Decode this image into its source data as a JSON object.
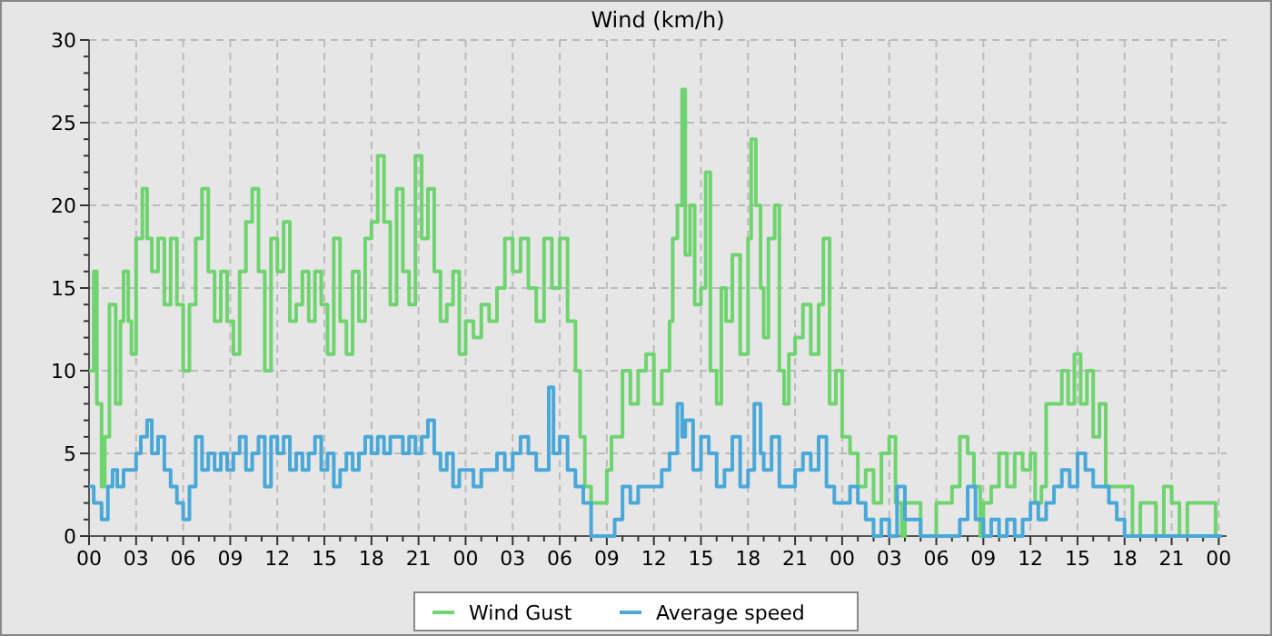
{
  "chart_data": {
    "type": "step",
    "title": "Wind (km/h)",
    "legend": "bottom",
    "grid": true,
    "line_style": "solid",
    "marker": "none",
    "xlim": [
      0,
      72.5
    ],
    "ylim": [
      0,
      30
    ],
    "xticks": [
      {
        "value": 0,
        "label": "00"
      },
      {
        "value": 1,
        "label": null
      },
      {
        "value": 2,
        "label": null
      },
      {
        "value": 3,
        "label": "03"
      },
      {
        "value": 4,
        "label": null
      },
      {
        "value": 5,
        "label": null
      },
      {
        "value": 6,
        "label": "06"
      },
      {
        "value": 7,
        "label": null
      },
      {
        "value": 8,
        "label": null
      },
      {
        "value": 9,
        "label": "09"
      },
      {
        "value": 10,
        "label": null
      },
      {
        "value": 11,
        "label": null
      },
      {
        "value": 12,
        "label": "12"
      },
      {
        "value": 13,
        "label": null
      },
      {
        "value": 14,
        "label": null
      },
      {
        "value": 15,
        "label": "15"
      },
      {
        "value": 16,
        "label": null
      },
      {
        "value": 17,
        "label": null
      },
      {
        "value": 18,
        "label": "18"
      },
      {
        "value": 19,
        "label": null
      },
      {
        "value": 20,
        "label": null
      },
      {
        "value": 21,
        "label": "21"
      },
      {
        "value": 22,
        "label": null
      },
      {
        "value": 23,
        "label": null
      },
      {
        "value": 24,
        "label": "00"
      },
      {
        "value": 25,
        "label": null
      },
      {
        "value": 26,
        "label": null
      },
      {
        "value": 27,
        "label": "03"
      },
      {
        "value": 28,
        "label": null
      },
      {
        "value": 29,
        "label": null
      },
      {
        "value": 30,
        "label": "06"
      },
      {
        "value": 31,
        "label": null
      },
      {
        "value": 32,
        "label": null
      },
      {
        "value": 33,
        "label": "09"
      },
      {
        "value": 34,
        "label": null
      },
      {
        "value": 35,
        "label": null
      },
      {
        "value": 36,
        "label": "12"
      },
      {
        "value": 37,
        "label": null
      },
      {
        "value": 38,
        "label": null
      },
      {
        "value": 39,
        "label": "15"
      },
      {
        "value": 40,
        "label": null
      },
      {
        "value": 41,
        "label": null
      },
      {
        "value": 42,
        "label": "18"
      },
      {
        "value": 43,
        "label": null
      },
      {
        "value": 44,
        "label": null
      },
      {
        "value": 45,
        "label": "21"
      },
      {
        "value": 46,
        "label": null
      },
      {
        "value": 47,
        "label": null
      },
      {
        "value": 48,
        "label": "00"
      },
      {
        "value": 49,
        "label": null
      },
      {
        "value": 50,
        "label": null
      },
      {
        "value": 51,
        "label": "03"
      },
      {
        "value": 52,
        "label": null
      },
      {
        "value": 53,
        "label": null
      },
      {
        "value": 54,
        "label": "06"
      },
      {
        "value": 55,
        "label": null
      },
      {
        "value": 56,
        "label": null
      },
      {
        "value": 57,
        "label": "09"
      },
      {
        "value": 58,
        "label": null
      },
      {
        "value": 59,
        "label": null
      },
      {
        "value": 60,
        "label": "12"
      },
      {
        "value": 61,
        "label": null
      },
      {
        "value": 62,
        "label": null
      },
      {
        "value": 63,
        "label": "15"
      },
      {
        "value": 64,
        "label": null
      },
      {
        "value": 65,
        "label": null
      },
      {
        "value": 66,
        "label": "18"
      },
      {
        "value": 67,
        "label": null
      },
      {
        "value": 68,
        "label": null
      },
      {
        "value": 69,
        "label": "21"
      },
      {
        "value": 70,
        "label": null
      },
      {
        "value": 71,
        "label": null
      },
      {
        "value": 72,
        "label": "00"
      }
    ],
    "yticks": [
      0,
      {
        "value": 1,
        "label": null
      },
      {
        "value": 2,
        "label": null
      },
      {
        "value": 3,
        "label": null
      },
      {
        "value": 4,
        "label": null
      },
      5,
      {
        "value": 6,
        "label": null
      },
      {
        "value": 7,
        "label": null
      },
      {
        "value": 8,
        "label": null
      },
      {
        "value": 9,
        "label": null
      },
      10,
      {
        "value": 11,
        "label": null
      },
      {
        "value": 12,
        "label": null
      },
      {
        "value": 13,
        "label": null
      },
      {
        "value": 14,
        "label": null
      },
      15,
      {
        "value": 16,
        "label": null
      },
      {
        "value": 17,
        "label": null
      },
      {
        "value": 18,
        "label": null
      },
      {
        "value": 19,
        "label": null
      },
      20,
      {
        "value": 21,
        "label": null
      },
      {
        "value": 22,
        "label": null
      },
      {
        "value": 23,
        "label": null
      },
      {
        "value": 24,
        "label": null
      },
      25,
      {
        "value": 26,
        "label": null
      },
      {
        "value": 27,
        "label": null
      },
      {
        "value": 28,
        "label": null
      },
      {
        "value": 29,
        "label": null
      },
      30
    ],
    "series": [
      {
        "name": "Wind Gust",
        "color": "#6fd46f",
        "x": [
          0,
          0.3,
          0.5,
          0.8,
          1.0,
          1.3,
          1.7,
          2.0,
          2.2,
          2.5,
          2.7,
          3.0,
          3.4,
          3.7,
          4.0,
          4.4,
          4.8,
          5.2,
          5.6,
          6.0,
          6.4,
          6.8,
          7.2,
          7.6,
          8.0,
          8.4,
          8.8,
          9.2,
          9.6,
          10.0,
          10.4,
          10.8,
          11.2,
          11.6,
          12.0,
          12.4,
          12.8,
          13.2,
          13.6,
          14.0,
          14.4,
          14.8,
          15.2,
          15.6,
          16.0,
          16.4,
          16.8,
          17.2,
          17.6,
          18.0,
          18.4,
          18.8,
          19.2,
          19.6,
          20.0,
          20.4,
          20.8,
          21.2,
          21.6,
          22.0,
          22.4,
          22.8,
          23.2,
          23.6,
          24.0,
          24.5,
          25,
          25.5,
          26,
          26.5,
          27,
          27.5,
          28,
          28.5,
          29,
          29.5,
          30,
          30.5,
          31,
          31.3,
          31.6,
          32,
          32.6,
          33,
          33.3,
          33.6,
          34,
          34.5,
          35,
          35.5,
          36,
          36.5,
          37,
          37.2,
          37.5,
          37.8,
          38,
          38.3,
          38.6,
          39,
          39.3,
          39.6,
          40,
          40.3,
          40.6,
          41,
          41.5,
          42,
          42.2,
          42.5,
          42.8,
          43,
          43.3,
          43.7,
          44,
          44.3,
          44.6,
          45,
          45.5,
          46,
          46.5,
          46.8,
          47.2,
          47.6,
          48,
          48.5,
          49,
          49.5,
          50,
          50.5,
          51,
          51.4,
          51.8,
          52,
          52.5,
          53,
          54,
          54.5,
          55,
          55.5,
          56,
          56.4,
          56.8,
          57,
          57.5,
          58,
          58.5,
          59,
          59.5,
          60,
          60.3,
          60.7,
          61,
          61.5,
          62,
          62.4,
          62.8,
          63.2,
          63.6,
          64,
          64.4,
          64.8,
          65,
          66,
          66.5,
          67,
          67.3,
          68,
          68.5,
          69,
          69.5,
          70,
          70.5,
          71,
          71.5,
          71.8
        ],
        "values": [
          10,
          16,
          8,
          3,
          6,
          14,
          8,
          13,
          16,
          13,
          11,
          18,
          21,
          18,
          16,
          18,
          14,
          18,
          14,
          10,
          14,
          18,
          21,
          16,
          13,
          16,
          13,
          11,
          16,
          19,
          21,
          16,
          10,
          18,
          16,
          19,
          13,
          14,
          16,
          13,
          16,
          14,
          11,
          18,
          13,
          11,
          16,
          13,
          18,
          19,
          23,
          19,
          14,
          21,
          16,
          14,
          23,
          18,
          21,
          16,
          13,
          14,
          16,
          11,
          13,
          12,
          14,
          13,
          15,
          18,
          16,
          18,
          15,
          13,
          18,
          15,
          18,
          13,
          10,
          6,
          3,
          2,
          2,
          4,
          6,
          6,
          10,
          8,
          10,
          11,
          8,
          10,
          13,
          18,
          20,
          27,
          17,
          20,
          14,
          15,
          22,
          10,
          8,
          15,
          13,
          17,
          11,
          18,
          24,
          20,
          15,
          12,
          18,
          20,
          10,
          8,
          11,
          12,
          14,
          11,
          14,
          18,
          8,
          10,
          6,
          5,
          3,
          4,
          2,
          5,
          6,
          2,
          0,
          2,
          2,
          0,
          2,
          2,
          3,
          6,
          5,
          3,
          0,
          2,
          3,
          5,
          3,
          5,
          4,
          5,
          2,
          3,
          8,
          8,
          10,
          8,
          11,
          8,
          10,
          6,
          8,
          3,
          3,
          3,
          0,
          2,
          2,
          0,
          3,
          2,
          0,
          2,
          2,
          2,
          2,
          0
        ]
      },
      {
        "name": "Average speed",
        "color": "#4aa8d8",
        "x": [
          0,
          0.3,
          0.8,
          1.2,
          1.5,
          1.8,
          2.2,
          2.6,
          3.0,
          3.3,
          3.7,
          4.0,
          4.4,
          4.8,
          5.2,
          5.6,
          6.0,
          6.4,
          6.8,
          7.2,
          7.6,
          8.0,
          8.4,
          8.8,
          9.2,
          9.6,
          10.0,
          10.4,
          10.8,
          11.2,
          11.6,
          12.0,
          12.4,
          12.8,
          13.2,
          13.6,
          14.0,
          14.4,
          14.8,
          15.2,
          15.6,
          16.0,
          16.4,
          16.8,
          17.2,
          17.6,
          18.0,
          18.4,
          18.8,
          19.2,
          19.6,
          20.0,
          20.4,
          20.8,
          21.2,
          21.6,
          22.0,
          22.4,
          22.8,
          23.2,
          23.6,
          24,
          24.5,
          25,
          25.5,
          26,
          26.5,
          27,
          27.5,
          28,
          28.5,
          29,
          29.3,
          29.6,
          30,
          30.5,
          31,
          31.5,
          32,
          32.5,
          33,
          33.5,
          34,
          34.5,
          35,
          35.5,
          36,
          36.5,
          37,
          37.5,
          37.8,
          38,
          38.5,
          39,
          39.5,
          40,
          40.5,
          41,
          41.5,
          42,
          42.4,
          42.8,
          43,
          43.5,
          44,
          44.5,
          45,
          45.5,
          46,
          46.5,
          47,
          47.5,
          48,
          48.5,
          49,
          49.5,
          50,
          50.5,
          51,
          51.5,
          52,
          53,
          54,
          55,
          55.5,
          56,
          56.5,
          57,
          57.5,
          58,
          58.5,
          59,
          59.5,
          60,
          60.5,
          61,
          61.5,
          62,
          62.5,
          63,
          63.5,
          64,
          64.5,
          65,
          65.5,
          66,
          67,
          68,
          69,
          70,
          71,
          72,
          72.2
        ],
        "values": [
          3,
          2,
          1,
          3,
          4,
          3,
          4,
          4,
          5,
          6,
          7,
          5,
          6,
          4,
          3,
          2,
          1,
          3,
          6,
          4,
          5,
          4,
          5,
          4,
          5,
          6,
          4,
          5,
          6,
          3,
          6,
          5,
          6,
          4,
          5,
          4,
          5,
          6,
          4,
          5,
          3,
          4,
          5,
          4,
          5,
          6,
          5,
          6,
          5,
          6,
          6,
          5,
          6,
          5,
          6,
          7,
          5,
          4,
          5,
          3,
          4,
          4,
          3,
          4,
          4,
          5,
          4,
          5,
          6,
          5,
          4,
          4,
          9,
          5,
          6,
          4,
          3,
          2,
          0,
          0,
          0,
          1,
          3,
          2,
          3,
          3,
          3,
          4,
          5,
          8,
          6,
          7,
          4,
          6,
          5,
          3,
          4,
          6,
          3,
          4,
          8,
          5,
          4,
          6,
          3,
          3,
          4,
          5,
          4,
          6,
          3,
          2,
          2,
          3,
          2,
          1,
          0,
          1,
          0,
          3,
          1,
          0,
          0,
          0,
          1,
          3,
          1,
          0,
          1,
          0,
          1,
          0,
          1,
          2,
          1,
          2,
          3,
          4,
          3,
          5,
          4,
          3,
          3,
          2,
          1,
          0,
          0,
          0,
          0,
          0,
          0,
          0,
          0
        ]
      }
    ]
  }
}
